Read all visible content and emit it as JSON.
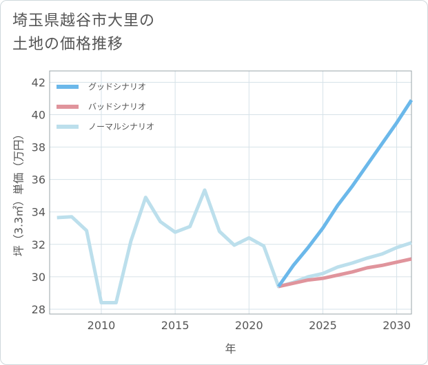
{
  "title_lines": [
    "埼玉県越谷市大里の",
    "土地の価格推移"
  ],
  "chart_data": {
    "type": "line",
    "xlabel": "年",
    "ylabel": "坪（3.3㎡）単価（万円）",
    "xlim": [
      2006.5,
      2031
    ],
    "ylim": [
      27.7,
      42.7
    ],
    "x_ticks": [
      2010,
      2015,
      2020,
      2025,
      2030
    ],
    "y_ticks": [
      28,
      30,
      32,
      34,
      36,
      38,
      40,
      42
    ],
    "grid": true,
    "legend_position": "top-left",
    "series": [
      {
        "name": "グッドシナリオ",
        "color": "#6bb8ea",
        "x": [
          2022,
          2023,
          2024,
          2025,
          2026,
          2027,
          2028,
          2029,
          2030,
          2031
        ],
        "y": [
          29.4,
          30.7,
          31.8,
          33.0,
          34.4,
          35.6,
          36.9,
          38.2,
          39.5,
          40.9
        ]
      },
      {
        "name": "バッドシナリオ",
        "color": "#e0949c",
        "x": [
          2022,
          2023,
          2024,
          2025,
          2026,
          2027,
          2028,
          2029,
          2030,
          2031
        ],
        "y": [
          29.4,
          29.6,
          29.8,
          29.9,
          30.1,
          30.3,
          30.55,
          30.7,
          30.9,
          31.1
        ]
      },
      {
        "name": "ノーマルシナリオ",
        "color": "#bcdfec",
        "x": [
          2007,
          2008,
          2009,
          2010,
          2011,
          2012,
          2013,
          2014,
          2015,
          2016,
          2017,
          2018,
          2019,
          2020,
          2021,
          2022,
          2023,
          2024,
          2025,
          2026,
          2027,
          2028,
          2029,
          2030,
          2031
        ],
        "y": [
          33.65,
          33.7,
          32.85,
          28.4,
          28.4,
          32.2,
          34.9,
          33.4,
          32.75,
          33.1,
          35.35,
          32.8,
          31.95,
          32.4,
          31.9,
          29.4,
          29.65,
          30.0,
          30.2,
          30.6,
          30.85,
          31.15,
          31.4,
          31.8,
          32.1
        ]
      }
    ]
  }
}
